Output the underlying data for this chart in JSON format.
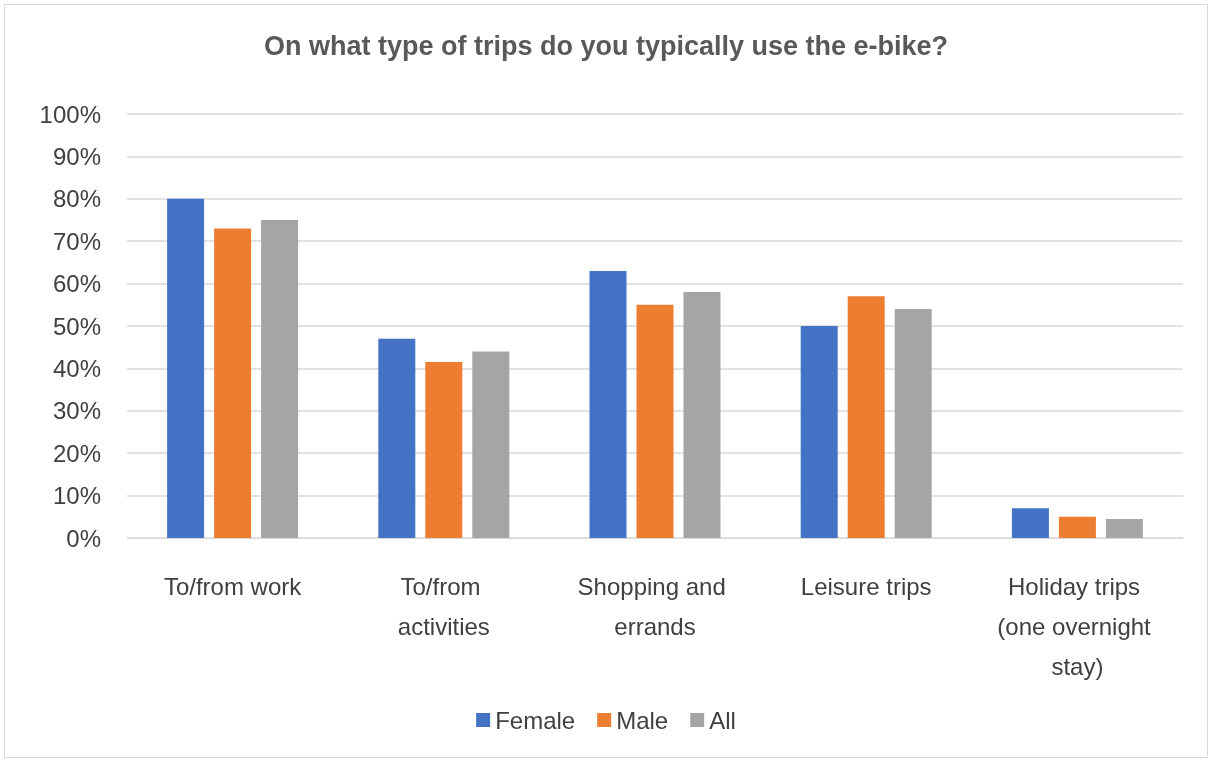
{
  "chart_data": {
    "type": "bar",
    "title": "On what type of trips do you typically use the e-bike?",
    "categories": [
      "To/from work",
      "To/from activities",
      "Shopping and errands",
      "Leisure trips",
      "Holiday trips (one overnight stay)"
    ],
    "series": [
      {
        "name": "Female",
        "color": "#4472c4",
        "values": [
          80,
          47,
          63,
          50,
          7
        ]
      },
      {
        "name": "Male",
        "color": "#ed7d31",
        "values": [
          73,
          41.5,
          55,
          57,
          5
        ]
      },
      {
        "name": "All",
        "color": "#a5a5a5",
        "values": [
          75,
          44,
          58,
          54,
          4.5
        ]
      }
    ],
    "ylim": [
      0,
      100
    ],
    "yticks": [
      {
        "value": 0,
        "label": "0%"
      },
      {
        "value": 10,
        "label": "10%"
      },
      {
        "value": 20,
        "label": "20%"
      },
      {
        "value": 30,
        "label": "30%"
      },
      {
        "value": 40,
        "label": "40%"
      },
      {
        "value": 50,
        "label": "50%"
      },
      {
        "value": 60,
        "label": "60%"
      },
      {
        "value": 70,
        "label": "70%"
      },
      {
        "value": 80,
        "label": "80%"
      },
      {
        "value": 90,
        "label": "90%"
      },
      {
        "value": 100,
        "label": "100%"
      }
    ],
    "grid": "y",
    "legend": "bottom"
  }
}
